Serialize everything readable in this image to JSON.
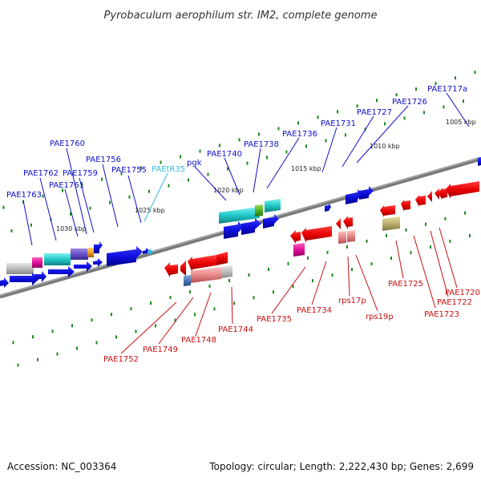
{
  "title": "Pyrobaculum aerophilum str. IM2, complete genome",
  "footer": {
    "accession": "Accession: NC_003364",
    "summary": "Topology: circular; Length: 2,222,430 bp; Genes: 2,699"
  },
  "colors": {
    "forward_label": "#1010c8",
    "reverse_label": "#c81010",
    "rna_label": "#33bbdd",
    "backbone": "#7a7a7a",
    "tick": "#1a8a1a"
  },
  "kbp_labels": [
    "1005 kbp",
    "1010 kbp",
    "1015 kbp",
    "1020 kbp",
    "1025 kbp",
    "1030 kbp"
  ],
  "forward_genes": [
    "PAE1717a",
    "PAE1726",
    "PAE1727",
    "PAE1731",
    "PAE1736",
    "PAE1738",
    "PAE1740",
    "pgk",
    "PAEtR35",
    "PAE1755",
    "PAE1756",
    "PAE1759",
    "PAE1760",
    "PAE1761",
    "PAE1762",
    "PAE1763"
  ],
  "reverse_genes": [
    "PAE1720",
    "PAE1722",
    "PAE1723",
    "PAE1725",
    "rps19p",
    "rps17p",
    "PAE1734",
    "PAE1735",
    "PAE1744",
    "PAE1748",
    "PAE1749",
    "PAE1752"
  ]
}
